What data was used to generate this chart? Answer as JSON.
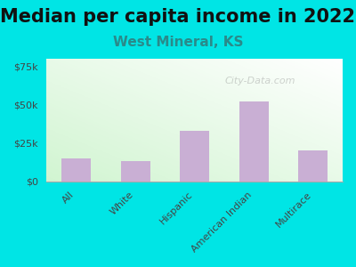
{
  "title": "Median per capita income in 2022",
  "subtitle": "West Mineral, KS",
  "categories": [
    "All",
    "White",
    "Hispanic",
    "American Indian",
    "Multirace"
  ],
  "values": [
    15000,
    13000,
    33000,
    52000,
    20000
  ],
  "bar_color": "#c9afd4",
  "background_color": "#00e5e5",
  "title_fontsize": 15,
  "subtitle_fontsize": 11,
  "subtitle_color": "#2a8a8a",
  "ylim": [
    0,
    80000
  ],
  "yticks": [
    0,
    25000,
    50000,
    75000
  ],
  "ytick_labels": [
    "$0",
    "$25k",
    "$50k",
    "$75k"
  ],
  "watermark": "City-Data.com"
}
